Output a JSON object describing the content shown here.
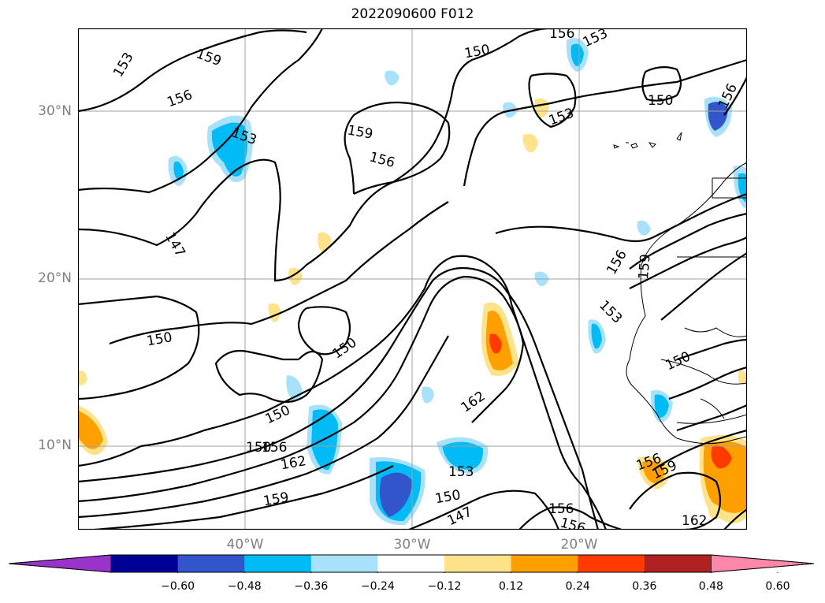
{
  "title": "2022090600 F012",
  "lat_labels": [
    "30°N",
    "20°N",
    "10°N"
  ],
  "lon_labels": [
    "40°W",
    "30°W",
    "20°W"
  ],
  "contour_labels": [
    "153",
    "159",
    "156",
    "153",
    "156",
    "153",
    "150",
    "156",
    "159",
    "156",
    "150",
    "153",
    "147",
    "150",
    "150",
    "150",
    "156",
    "159",
    "153",
    "150",
    "162",
    "150",
    "156",
    "162",
    "159",
    "153",
    "150",
    "147",
    "156",
    "156",
    "159",
    "162",
    "156"
  ],
  "colorbar": {
    "ticks": [
      "−0.60",
      "−0.48",
      "−0.36",
      "−0.24",
      "−0.12",
      "0.12",
      "0.24",
      "0.36",
      "0.48",
      "0.60"
    ],
    "colors": [
      "#9933cc",
      "#000099",
      "#3355cc",
      "#00bbf5",
      "#a8e2fa",
      "#ffffff",
      "#ffe38a",
      "#ff9f00",
      "#ff3b00",
      "#b02222",
      "#ff88aa"
    ]
  }
}
